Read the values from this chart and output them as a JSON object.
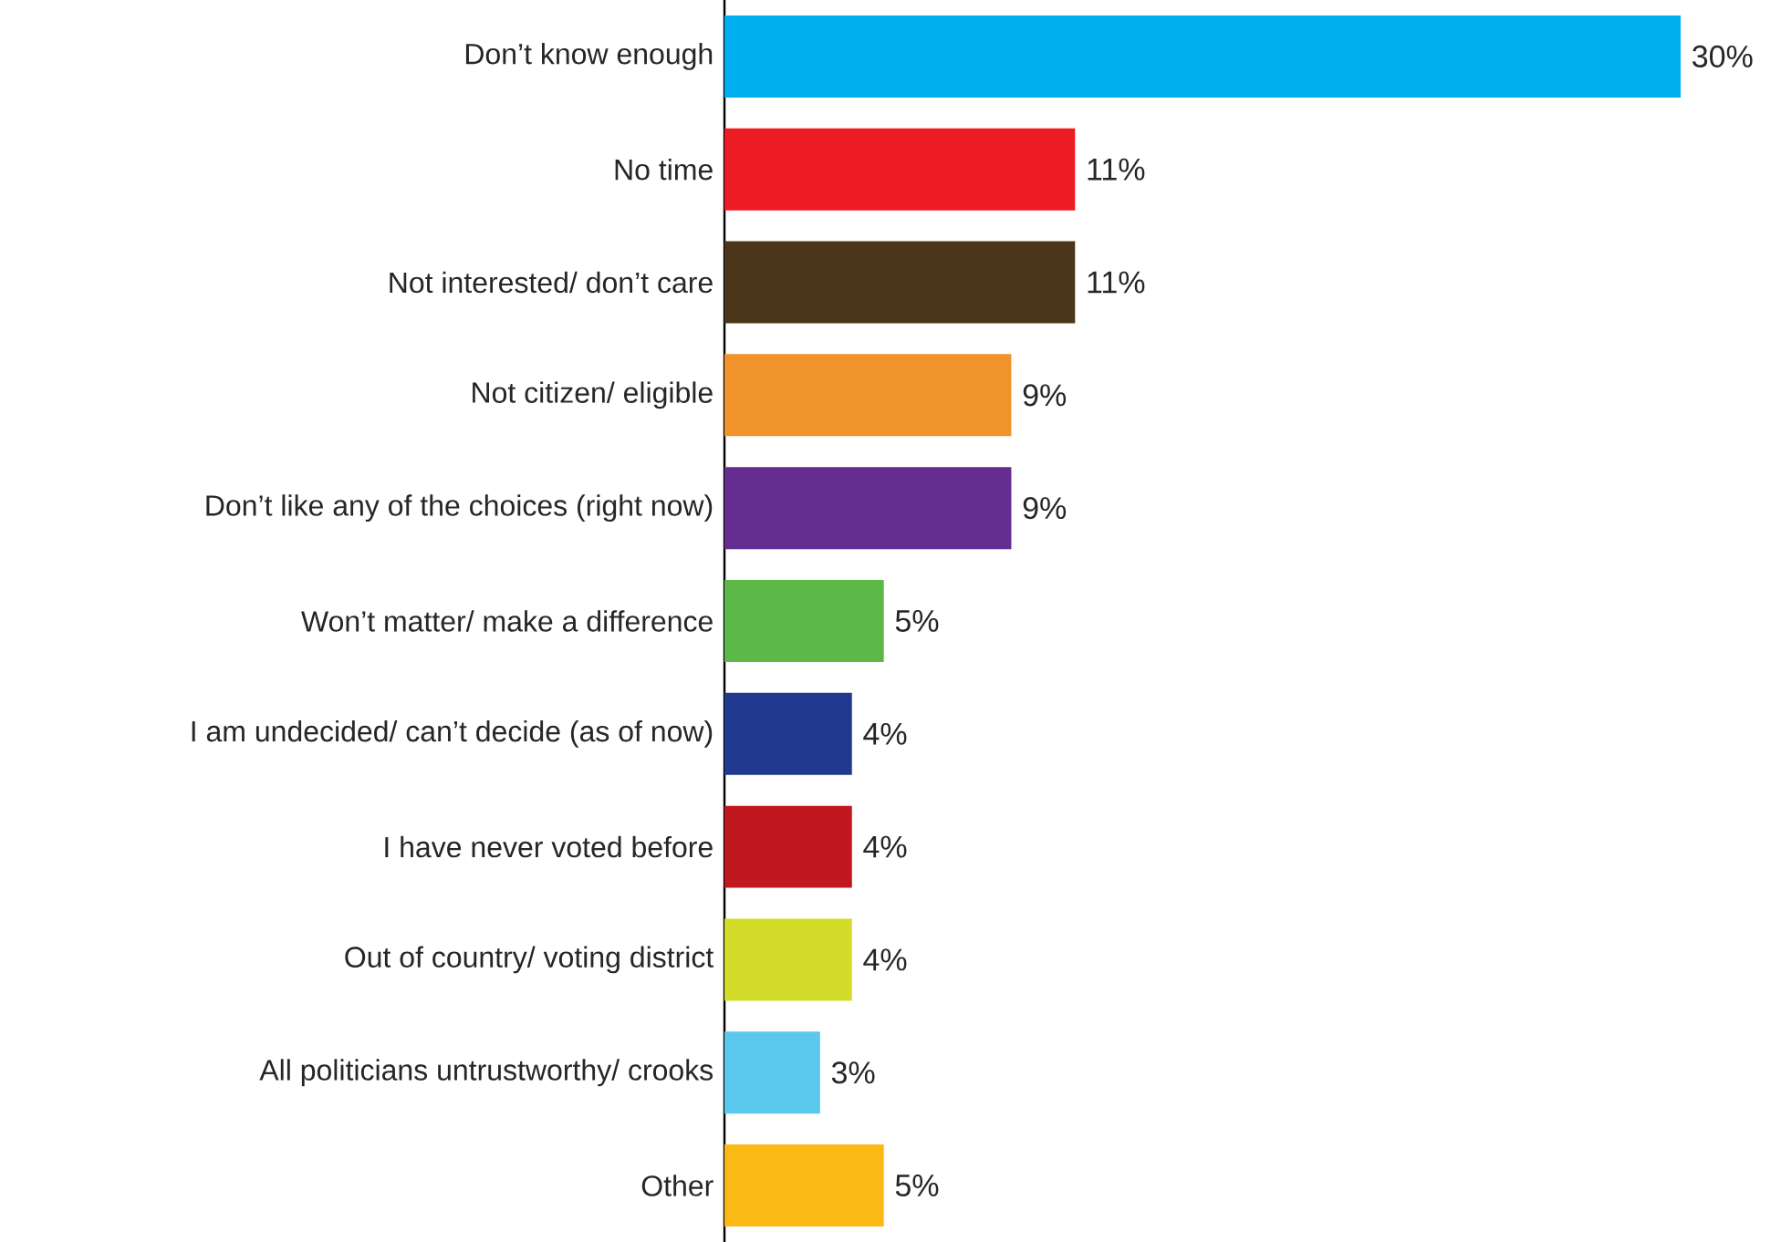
{
  "chart_data": {
    "type": "bar",
    "orientation": "horizontal",
    "tick_labels": "y",
    "categories": [
      "Don’t know enough",
      "No time",
      "Not interested/ don’t care",
      "Not citizen/ eligible",
      "Don’t like any of the choices (right now)",
      "Won’t matter/ make a difference",
      "I am undecided/ can’t decide (as of now)",
      "I have never voted before",
      "Out of country/ voting district",
      "All politicians untrustworthy/ crooks",
      "Other"
    ],
    "values": [
      30,
      11,
      11,
      9,
      9,
      5,
      4,
      4,
      4,
      3,
      5
    ],
    "value_labels": [
      "30%",
      "11%",
      "11%",
      "9%",
      "9%",
      "5%",
      "4%",
      "4%",
      "4%",
      "3%",
      "5%"
    ],
    "colors": [
      "#00aeef",
      "#ed1c24",
      "#4b3619",
      "#f0932b",
      "#662d91",
      "#5cb947",
      "#213a8f",
      "#c1171f",
      "#d4dc2a",
      "#5bc8ee",
      "#fbb915"
    ]
  }
}
